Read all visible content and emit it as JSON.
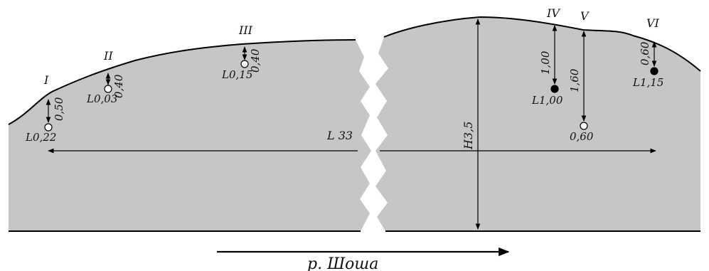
{
  "figure": {
    "river_label": "р. Шоша",
    "length_label": "L 33",
    "height_label": "H3,5"
  },
  "points": [
    {
      "id": "I",
      "depth": "0,50",
      "value": "L0,22",
      "marker": "open"
    },
    {
      "id": "II",
      "depth": "0,40",
      "value": "L0,03",
      "marker": "open"
    },
    {
      "id": "III",
      "depth": "0,40",
      "value": "L0,15",
      "marker": "open"
    },
    {
      "id": "IV",
      "depth": "1,00",
      "value": "L1,00",
      "marker": "filled"
    },
    {
      "id": "V",
      "depth": "1,60",
      "value": "0,60",
      "marker": "open"
    },
    {
      "id": "VI",
      "depth": "0,60",
      "value": "L1,15",
      "marker": "filled"
    }
  ],
  "colors": {
    "fill": "#c6c6c6",
    "line": "#000000",
    "background": "#ffffff"
  }
}
